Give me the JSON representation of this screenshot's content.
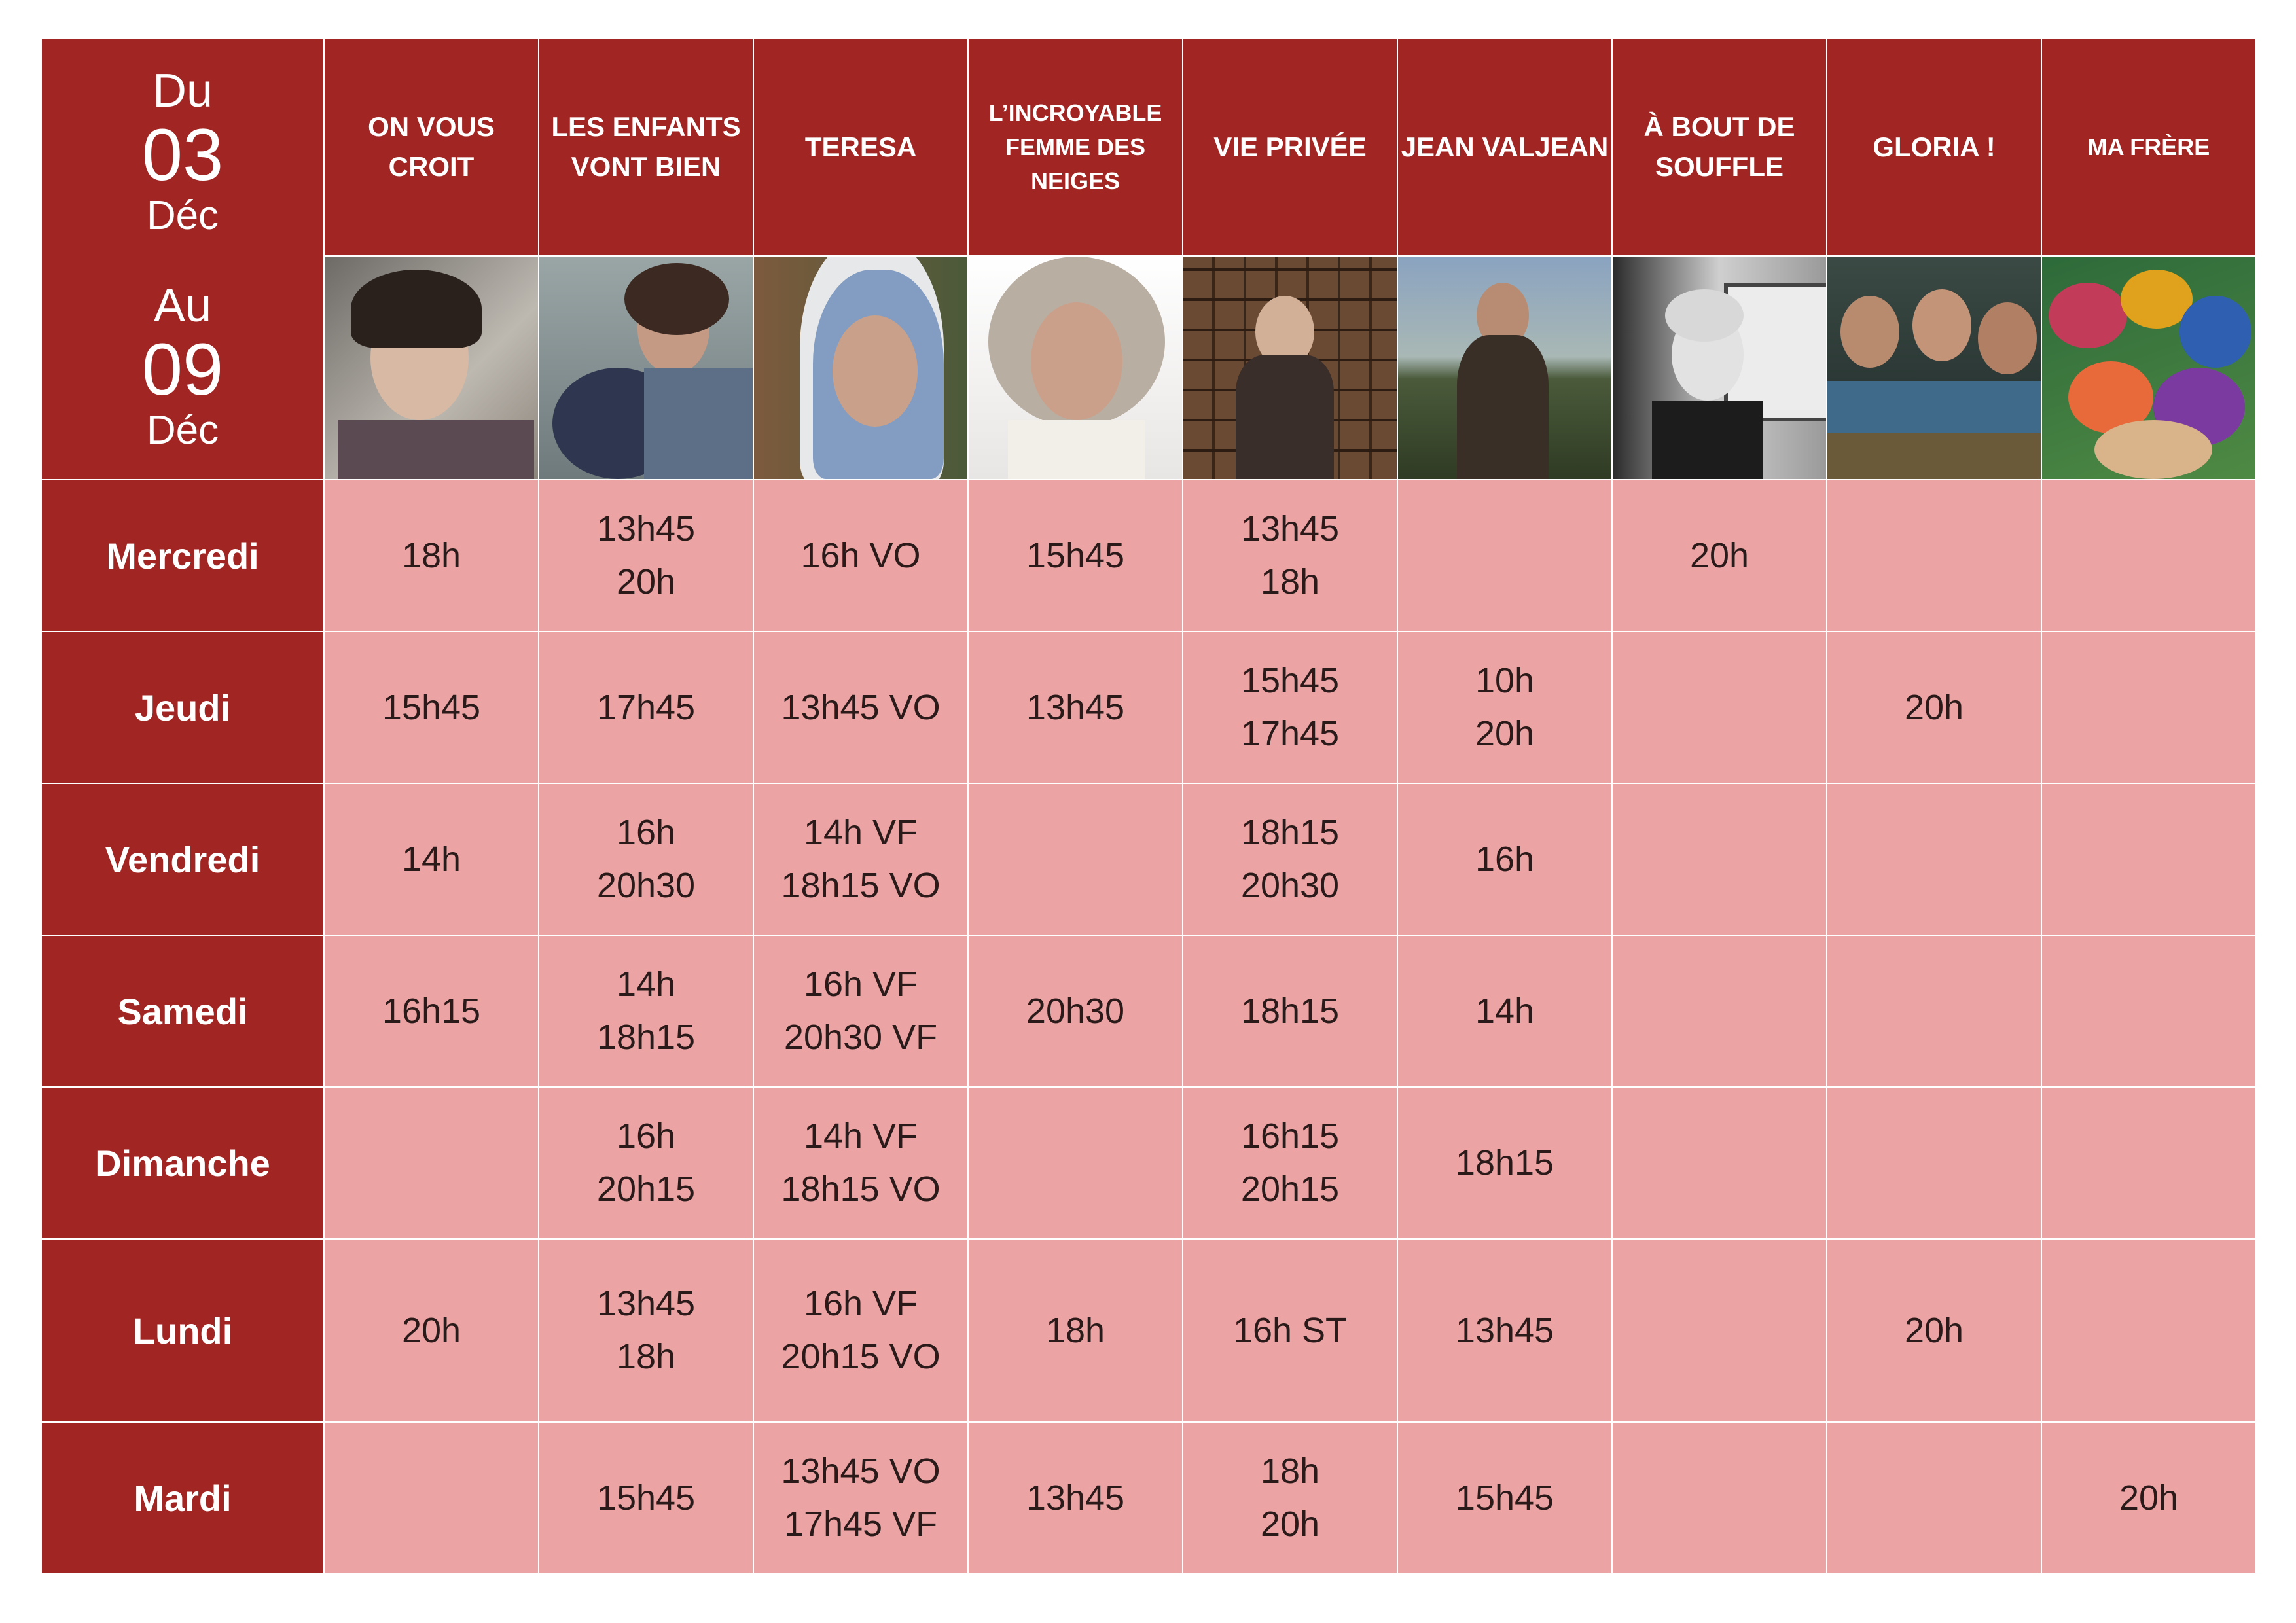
{
  "dates": {
    "from_word": "Du",
    "from_day": "03",
    "from_month": "Déc",
    "to_word": "Au",
    "to_day": "09",
    "to_month": "Déc"
  },
  "colors": {
    "header_red": "#a12522",
    "cell_pink": "#eba3a3",
    "text_white": "#ffffff"
  },
  "films": [
    {
      "title": "ON VOUS CROIT",
      "poster": "woman-resting-head-photo"
    },
    {
      "title": "LES ENFANTS VONT BIEN",
      "poster": "mother-hugging-child-photo"
    },
    {
      "title": "TERESA",
      "poster": "nun-in-blue-veil-photo"
    },
    {
      "title": "L’INCROYABLE FEMME DES NEIGES",
      "poster": "woman-fur-hat-photo"
    },
    {
      "title": "VIE PRIVÉE",
      "poster": "woman-archive-drawers-photo"
    },
    {
      "title": "JEAN VALJEAN",
      "poster": "man-on-mountain-photo"
    },
    {
      "title": "À BOUT DE SOUFFLE",
      "poster": "black-white-mirror-photo"
    },
    {
      "title": "GLORIA !",
      "poster": "girls-at-table-photo"
    },
    {
      "title": "MA FRÈRE",
      "poster": "group-lying-on-grass-photo"
    }
  ],
  "schedule": [
    {
      "day": "Mercredi",
      "shows": [
        [
          "18h"
        ],
        [
          "13h45",
          "20h"
        ],
        [
          "16h VO"
        ],
        [
          "15h45"
        ],
        [
          "13h45",
          "18h"
        ],
        [],
        [
          "20h"
        ],
        [],
        []
      ]
    },
    {
      "day": "Jeudi",
      "shows": [
        [
          "15h45"
        ],
        [
          "17h45"
        ],
        [
          "13h45 VO"
        ],
        [
          "13h45"
        ],
        [
          "15h45",
          "17h45"
        ],
        [
          "10h",
          "20h"
        ],
        [],
        [
          "20h"
        ],
        []
      ]
    },
    {
      "day": "Vendredi",
      "shows": [
        [
          "14h"
        ],
        [
          "16h",
          "20h30"
        ],
        [
          "14h VF",
          "18h15 VO"
        ],
        [],
        [
          "18h15",
          "20h30"
        ],
        [
          "16h"
        ],
        [],
        [],
        []
      ]
    },
    {
      "day": "Samedi",
      "shows": [
        [
          "16h15"
        ],
        [
          "14h",
          "18h15"
        ],
        [
          "16h VF",
          "20h30 VF"
        ],
        [
          "20h30"
        ],
        [
          "18h15"
        ],
        [
          "14h"
        ],
        [],
        [],
        []
      ]
    },
    {
      "day": "Dimanche",
      "shows": [
        [],
        [
          "16h",
          "20h15"
        ],
        [
          "14h VF",
          "18h15 VO"
        ],
        [],
        [
          "16h15",
          "20h15"
        ],
        [
          "18h15"
        ],
        [],
        [],
        []
      ]
    },
    {
      "day": "Lundi",
      "shows": [
        [
          "20h"
        ],
        [
          "13h45",
          "18h"
        ],
        [
          "16h VF",
          "20h15 VO"
        ],
        [
          "18h"
        ],
        [
          "16h ST"
        ],
        [
          "13h45"
        ],
        [],
        [
          "20h"
        ],
        []
      ]
    },
    {
      "day": "Mardi",
      "shows": [
        [],
        [
          "15h45"
        ],
        [
          "13h45 VO",
          "17h45 VF"
        ],
        [
          "13h45"
        ],
        [
          "18h",
          "20h"
        ],
        [
          "15h45"
        ],
        [],
        [],
        [
          "20h"
        ]
      ]
    }
  ]
}
